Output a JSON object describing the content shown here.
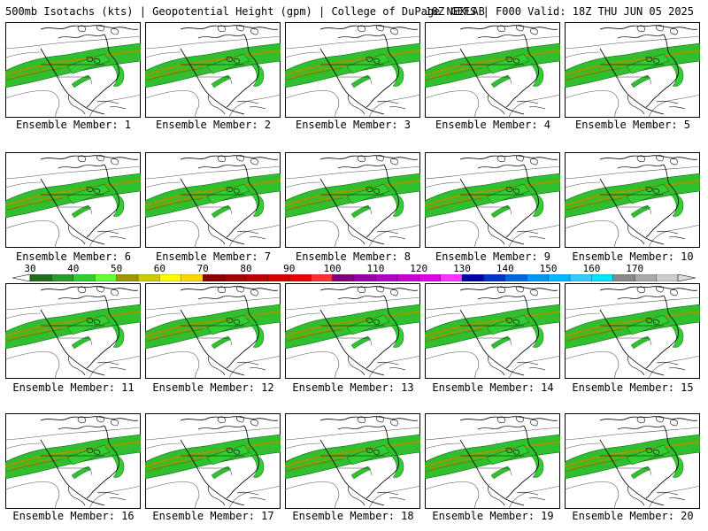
{
  "header": {
    "title_left": "500mb Isotachs (kts) | Geopotential Height (gpm) | College of DuPage NEXLAB",
    "title_right": "18Z GEFS | F000 Valid: 18Z THU JUN 05 2025"
  },
  "panels": [
    {
      "label": "Ensemble Member: 1"
    },
    {
      "label": "Ensemble Member: 2"
    },
    {
      "label": "Ensemble Member: 3"
    },
    {
      "label": "Ensemble Member: 4"
    },
    {
      "label": "Ensemble Member: 5"
    },
    {
      "label": "Ensemble Member: 6"
    },
    {
      "label": "Ensemble Member: 7"
    },
    {
      "label": "Ensemble Member: 8"
    },
    {
      "label": "Ensemble Member: 9"
    },
    {
      "label": "Ensemble Member: 10"
    },
    {
      "label": "Ensemble Member: 11"
    },
    {
      "label": "Ensemble Member: 12"
    },
    {
      "label": "Ensemble Member: 13"
    },
    {
      "label": "Ensemble Member: 14"
    },
    {
      "label": "Ensemble Member: 15"
    },
    {
      "label": "Ensemble Member: 16"
    },
    {
      "label": "Ensemble Member: 17"
    },
    {
      "label": "Ensemble Member: 18"
    },
    {
      "label": "Ensemble Member: 19"
    },
    {
      "label": "Ensemble Member: 20"
    }
  ],
  "colorbar": {
    "labels": [
      "30",
      "40",
      "50",
      "60",
      "70",
      "80",
      "90",
      "100",
      "110",
      "120",
      "130",
      "140",
      "150",
      "160",
      "170"
    ],
    "colors": [
      "#1e6e1e",
      "#2a9a2a",
      "#33cc33",
      "#66ff33",
      "#999900",
      "#cccc00",
      "#ffff00",
      "#ffd700",
      "#8b0000",
      "#a50000",
      "#c00000",
      "#d80000",
      "#ee0000",
      "#ff3030",
      "#800080",
      "#9900aa",
      "#b000c0",
      "#cc00cc",
      "#e000e0",
      "#ff33ff",
      "#0000aa",
      "#0033cc",
      "#0066dd",
      "#0099ee",
      "#00bbff",
      "#33ccff",
      "#00e5ff",
      "#888888",
      "#aaaaaa",
      "#cccccc"
    ]
  }
}
